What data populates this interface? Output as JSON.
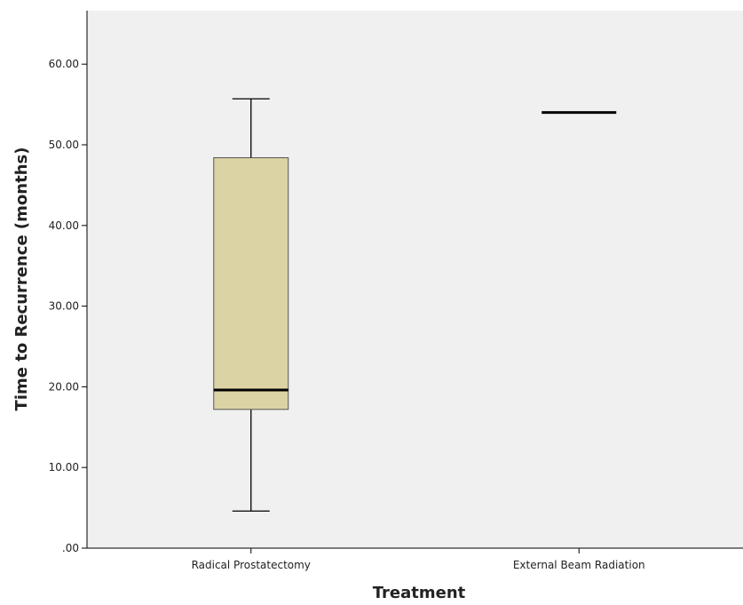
{
  "chart_data": {
    "type": "box",
    "title": "",
    "xlabel": "Treatment",
    "ylabel": "Time to Recurrence (months)",
    "ylim": [
      0,
      66
    ],
    "yticks": [
      ".00",
      "10.00",
      "20.00",
      "30.00",
      "40.00",
      "50.00",
      "60.00"
    ],
    "ytick_values": [
      0,
      10,
      20,
      30,
      40,
      50,
      60
    ],
    "categories": [
      "Radical Prostatectomy",
      "External Beam Radiation"
    ],
    "boxes": [
      {
        "category": "Radical Prostatectomy",
        "min": 4.6,
        "q1": 17.2,
        "median": 19.6,
        "q3": 48.4,
        "max": 55.7
      },
      {
        "category": "External Beam Radiation",
        "min": 54.0,
        "q1": 54.0,
        "median": 54.0,
        "q3": 54.0,
        "max": 54.0
      }
    ],
    "grid": false,
    "legend": "none",
    "colors": {
      "plot_background": "#f0f0f0",
      "box_fill": "#dcd3a5",
      "line": "#000000"
    }
  }
}
